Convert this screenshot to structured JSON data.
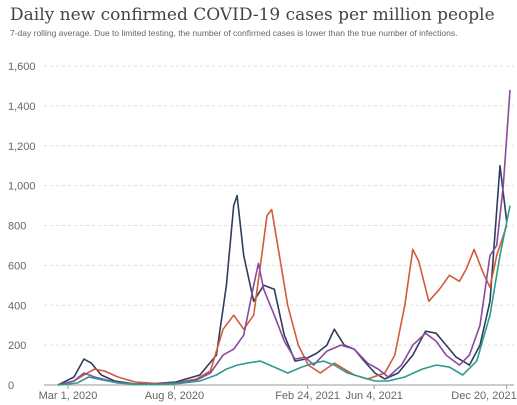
{
  "chart_data": {
    "type": "line",
    "title": "Daily new confirmed COVID-19 cases per million people",
    "subtitle": "7-day rolling average. Due to limited testing, the number of confirmed cases is lower than the true number of infections.",
    "ylim": [
      0,
      1600
    ],
    "y_ticks": [
      {
        "value": 0,
        "label": "0"
      },
      {
        "value": 200,
        "label": "200"
      },
      {
        "value": 400,
        "label": "400"
      },
      {
        "value": 600,
        "label": "600"
      },
      {
        "value": 800,
        "label": "800"
      },
      {
        "value": 1000,
        "label": "1,000"
      },
      {
        "value": 1200,
        "label": "1,200"
      },
      {
        "value": 1400,
        "label": "1,400"
      },
      {
        "value": 1600,
        "label": "1,600"
      }
    ],
    "x_ticks": [
      {
        "date": "2020-03-01",
        "label": "Mar 1, 2020"
      },
      {
        "date": "2020-08-08",
        "label": "Aug 8, 2020"
      },
      {
        "date": "2021-02-24",
        "label": "Feb 24, 2021"
      },
      {
        "date": "2021-06-04",
        "label": "Jun 4, 2021"
      },
      {
        "date": "2021-12-20",
        "label": "Dec 20, 2021"
      }
    ],
    "xlim": [
      "2020-01-25",
      "2021-12-31"
    ],
    "grid": true,
    "series": [
      {
        "color": "#2f3e5c",
        "points": [
          [
            "2020-02-15",
            0
          ],
          [
            "2020-03-10",
            40
          ],
          [
            "2020-03-25",
            130
          ],
          [
            "2020-04-05",
            110
          ],
          [
            "2020-04-20",
            50
          ],
          [
            "2020-05-10",
            20
          ],
          [
            "2020-06-10",
            5
          ],
          [
            "2020-07-10",
            8
          ],
          [
            "2020-08-10",
            15
          ],
          [
            "2020-09-15",
            50
          ],
          [
            "2020-10-10",
            150
          ],
          [
            "2020-10-25",
            500
          ],
          [
            "2020-11-05",
            900
          ],
          [
            "2020-11-10",
            950
          ],
          [
            "2020-11-20",
            650
          ],
          [
            "2020-12-05",
            420
          ],
          [
            "2020-12-20",
            500
          ],
          [
            "2021-01-05",
            480
          ],
          [
            "2021-01-20",
            250
          ],
          [
            "2021-02-05",
            120
          ],
          [
            "2021-02-20",
            130
          ],
          [
            "2021-03-10",
            160
          ],
          [
            "2021-03-25",
            200
          ],
          [
            "2021-04-05",
            280
          ],
          [
            "2021-04-20",
            200
          ],
          [
            "2021-05-05",
            180
          ],
          [
            "2021-05-20",
            120
          ],
          [
            "2021-06-05",
            60
          ],
          [
            "2021-06-20",
            30
          ],
          [
            "2021-07-10",
            60
          ],
          [
            "2021-08-01",
            150
          ],
          [
            "2021-08-20",
            270
          ],
          [
            "2021-09-05",
            260
          ],
          [
            "2021-09-20",
            200
          ],
          [
            "2021-10-05",
            140
          ],
          [
            "2021-10-25",
            100
          ],
          [
            "2021-11-10",
            200
          ],
          [
            "2021-11-25",
            420
          ],
          [
            "2021-12-10",
            1100
          ],
          [
            "2021-12-20",
            820
          ]
        ]
      },
      {
        "color": "#d35a3a",
        "points": [
          [
            "2020-02-15",
            0
          ],
          [
            "2020-03-10",
            20
          ],
          [
            "2020-03-25",
            50
          ],
          [
            "2020-04-10",
            80
          ],
          [
            "2020-04-25",
            70
          ],
          [
            "2020-05-15",
            40
          ],
          [
            "2020-06-10",
            15
          ],
          [
            "2020-07-10",
            8
          ],
          [
            "2020-08-10",
            10
          ],
          [
            "2020-09-10",
            30
          ],
          [
            "2020-10-01",
            70
          ],
          [
            "2020-10-20",
            280
          ],
          [
            "2020-11-05",
            350
          ],
          [
            "2020-11-20",
            280
          ],
          [
            "2020-12-05",
            350
          ],
          [
            "2020-12-15",
            600
          ],
          [
            "2020-12-25",
            850
          ],
          [
            "2021-01-01",
            880
          ],
          [
            "2021-01-10",
            700
          ],
          [
            "2021-01-25",
            400
          ],
          [
            "2021-02-10",
            200
          ],
          [
            "2021-02-25",
            100
          ],
          [
            "2021-03-15",
            60
          ],
          [
            "2021-04-05",
            110
          ],
          [
            "2021-04-20",
            80
          ],
          [
            "2021-05-05",
            50
          ],
          [
            "2021-05-25",
            30
          ],
          [
            "2021-06-20",
            60
          ],
          [
            "2021-07-05",
            150
          ],
          [
            "2021-07-20",
            400
          ],
          [
            "2021-08-01",
            680
          ],
          [
            "2021-08-10",
            620
          ],
          [
            "2021-08-25",
            420
          ],
          [
            "2021-09-10",
            480
          ],
          [
            "2021-09-25",
            550
          ],
          [
            "2021-10-10",
            520
          ],
          [
            "2021-10-20",
            580
          ],
          [
            "2021-11-01",
            680
          ],
          [
            "2021-11-15",
            560
          ],
          [
            "2021-11-25",
            490
          ],
          [
            "2021-12-05",
            650
          ],
          [
            "2021-12-20",
            800
          ]
        ]
      },
      {
        "color": "#8a4a9e",
        "points": [
          [
            "2020-02-15",
            0
          ],
          [
            "2020-03-10",
            20
          ],
          [
            "2020-03-25",
            60
          ],
          [
            "2020-04-10",
            40
          ],
          [
            "2020-05-10",
            15
          ],
          [
            "2020-06-10",
            5
          ],
          [
            "2020-07-10",
            5
          ],
          [
            "2020-08-10",
            10
          ],
          [
            "2020-09-10",
            25
          ],
          [
            "2020-10-01",
            60
          ],
          [
            "2020-10-20",
            150
          ],
          [
            "2020-11-05",
            180
          ],
          [
            "2020-11-20",
            250
          ],
          [
            "2020-12-05",
            500
          ],
          [
            "2020-12-12",
            610
          ],
          [
            "2020-12-20",
            480
          ],
          [
            "2021-01-05",
            350
          ],
          [
            "2021-01-20",
            220
          ],
          [
            "2021-02-05",
            130
          ],
          [
            "2021-02-20",
            140
          ],
          [
            "2021-03-05",
            100
          ],
          [
            "2021-03-25",
            170
          ],
          [
            "2021-04-15",
            200
          ],
          [
            "2021-05-05",
            180
          ],
          [
            "2021-05-25",
            110
          ],
          [
            "2021-06-10",
            80
          ],
          [
            "2021-06-25",
            40
          ],
          [
            "2021-07-15",
            100
          ],
          [
            "2021-08-01",
            200
          ],
          [
            "2021-08-20",
            260
          ],
          [
            "2021-09-05",
            220
          ],
          [
            "2021-09-20",
            150
          ],
          [
            "2021-10-10",
            100
          ],
          [
            "2021-10-25",
            150
          ],
          [
            "2021-11-10",
            300
          ],
          [
            "2021-11-25",
            650
          ],
          [
            "2021-12-05",
            700
          ],
          [
            "2021-12-15",
            1000
          ],
          [
            "2021-12-25",
            1480
          ]
        ]
      },
      {
        "color": "#2a9d8f",
        "points": [
          [
            "2020-02-15",
            0
          ],
          [
            "2020-03-15",
            10
          ],
          [
            "2020-04-01",
            40
          ],
          [
            "2020-04-15",
            30
          ],
          [
            "2020-05-15",
            10
          ],
          [
            "2020-06-15",
            3
          ],
          [
            "2020-07-15",
            3
          ],
          [
            "2020-08-15",
            8
          ],
          [
            "2020-09-15",
            20
          ],
          [
            "2020-10-10",
            50
          ],
          [
            "2020-10-25",
            80
          ],
          [
            "2020-11-10",
            100
          ],
          [
            "2020-11-25",
            110
          ],
          [
            "2020-12-15",
            120
          ],
          [
            "2021-01-05",
            90
          ],
          [
            "2021-01-25",
            60
          ],
          [
            "2021-02-15",
            90
          ],
          [
            "2021-03-05",
            110
          ],
          [
            "2021-03-20",
            120
          ],
          [
            "2021-04-05",
            100
          ],
          [
            "2021-04-25",
            60
          ],
          [
            "2021-05-15",
            40
          ],
          [
            "2021-06-05",
            20
          ],
          [
            "2021-06-25",
            20
          ],
          [
            "2021-07-20",
            40
          ],
          [
            "2021-08-15",
            80
          ],
          [
            "2021-09-05",
            100
          ],
          [
            "2021-09-25",
            90
          ],
          [
            "2021-10-15",
            50
          ],
          [
            "2021-11-05",
            120
          ],
          [
            "2021-11-25",
            350
          ],
          [
            "2021-12-10",
            650
          ],
          [
            "2021-12-25",
            900
          ]
        ]
      }
    ]
  }
}
